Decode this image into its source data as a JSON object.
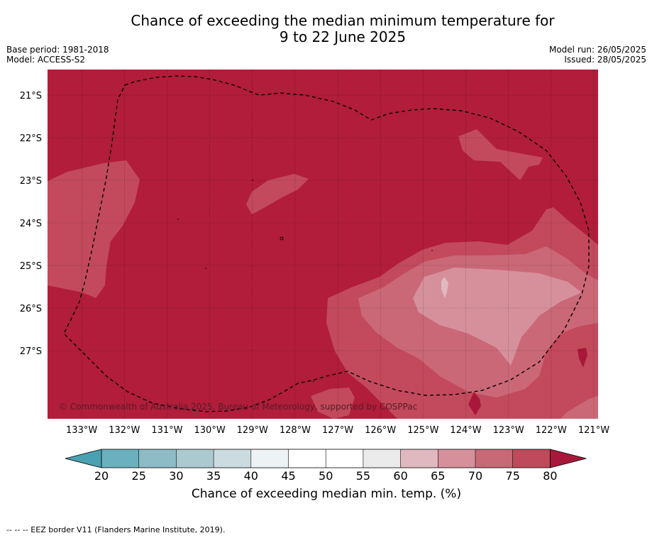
{
  "header": {
    "title_line1": "Chance of exceeding the median minimum temperature for",
    "title_line2": "9 to 22 June 2025",
    "base_period": "Base period: 1981-2018",
    "model": "Model: ACCESS-S2",
    "model_run": "Model run: 26/05/2025",
    "issued": "Issued: 28/05/2025"
  },
  "map": {
    "lon_range": [
      -133.8,
      -120.9
    ],
    "lat_range": [
      -28.6,
      -20.4
    ],
    "lon_ticks": [
      {
        "value": -133,
        "label": "133°W"
      },
      {
        "value": -132,
        "label": "132°W"
      },
      {
        "value": -131,
        "label": "131°W"
      },
      {
        "value": -130,
        "label": "130°W"
      },
      {
        "value": -129,
        "label": "129°W"
      },
      {
        "value": -128,
        "label": "128°W"
      },
      {
        "value": -127,
        "label": "127°W"
      },
      {
        "value": -126,
        "label": "126°W"
      },
      {
        "value": -125,
        "label": "125°W"
      },
      {
        "value": -124,
        "label": "124°W"
      },
      {
        "value": -123,
        "label": "123°W"
      },
      {
        "value": -122,
        "label": "122°W"
      },
      {
        "value": -121,
        "label": "121°W"
      }
    ],
    "lat_ticks": [
      {
        "value": -21,
        "label": "21°S"
      },
      {
        "value": -22,
        "label": "22°S"
      },
      {
        "value": -23,
        "label": "23°S"
      },
      {
        "value": -24,
        "label": "24°S"
      },
      {
        "value": -25,
        "label": "25°S"
      },
      {
        "value": -26,
        "label": "26°S"
      },
      {
        "value": -27,
        "label": "27°S"
      }
    ],
    "background_color": "#b11d3a",
    "copyright": "© Commonwealth of Australia 2025, Bureau of Meteorology, supported by COSPPac"
  },
  "colorbar": {
    "ticks": [
      "20",
      "25",
      "30",
      "35",
      "40",
      "45",
      "50",
      "55",
      "60",
      "65",
      "70",
      "75",
      "80"
    ],
    "colors": [
      "#6ab0be",
      "#8dbbc6",
      "#aacad0",
      "#cbdbdf",
      "#edf3f4",
      "#ffffff",
      "#ffffff",
      "#ebebeb",
      "#e0b8bf",
      "#d6909b",
      "#c86977",
      "#be4a5b"
    ],
    "low_color": "#4aa1b2",
    "high_color": "#a8183a",
    "label": "Chance of exceeding median min. temp. (%)"
  },
  "footnote": "--  --  -- EEZ border V11 (Flanders Marine Institute, 2019)."
}
